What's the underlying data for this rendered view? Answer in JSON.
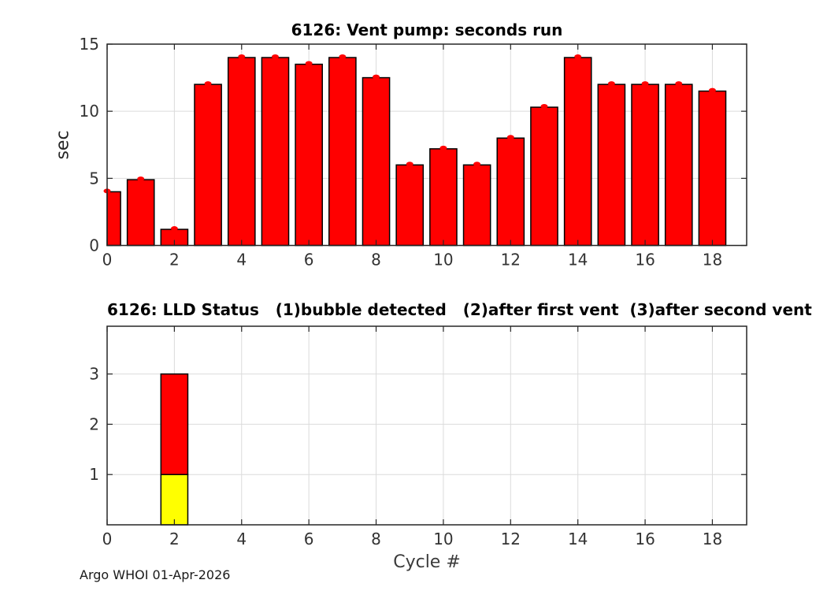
{
  "footer": "Argo WHOI 01-Apr-2026",
  "chart_data": [
    {
      "type": "bar",
      "title": "6126: Vent pump: seconds run",
      "ylabel": "sec",
      "xlabel": "",
      "x": [
        0,
        1,
        2,
        3,
        4,
        5,
        6,
        7,
        8,
        9,
        10,
        11,
        12,
        13,
        14,
        15,
        16,
        17,
        18
      ],
      "values": [
        4.0,
        4.9,
        1.2,
        12.0,
        14.0,
        14.0,
        13.5,
        14.0,
        12.5,
        6.0,
        7.2,
        6.0,
        8.0,
        10.3,
        14.0,
        12.0,
        12.0,
        12.0,
        11.5
      ],
      "bar_color": "#ff0000",
      "bar_edge_color": "#000000",
      "marker_color": "#ff0000",
      "xlim": [
        0,
        19.02
      ],
      "ylim": [
        0,
        15
      ],
      "xticks": [
        0,
        2,
        4,
        6,
        8,
        10,
        12,
        14,
        16,
        18
      ],
      "yticks": [
        0,
        5,
        10,
        15
      ],
      "grid": true,
      "legend": null
    },
    {
      "type": "stacked-bar",
      "title": "6126: LLD Status   (1)bubble detected   (2)after first vent  (3)after second vent",
      "ylabel": "",
      "xlabel": "Cycle #",
      "bars": [
        {
          "x": 2,
          "segments": [
            {
              "meaning": "bubble detected",
              "from": 0,
              "to": 1,
              "color": "#ffff00"
            },
            {
              "meaning": "after first and second vent",
              "from": 1,
              "to": 3,
              "color": "#ff0000"
            }
          ]
        }
      ],
      "bar_edge_color": "#000000",
      "xlim": [
        0,
        19.02
      ],
      "ylim": [
        0,
        3.95
      ],
      "xticks": [
        0,
        2,
        4,
        6,
        8,
        10,
        12,
        14,
        16,
        18
      ],
      "yticks": [
        1,
        2,
        3
      ],
      "grid": true,
      "legend": null
    }
  ]
}
